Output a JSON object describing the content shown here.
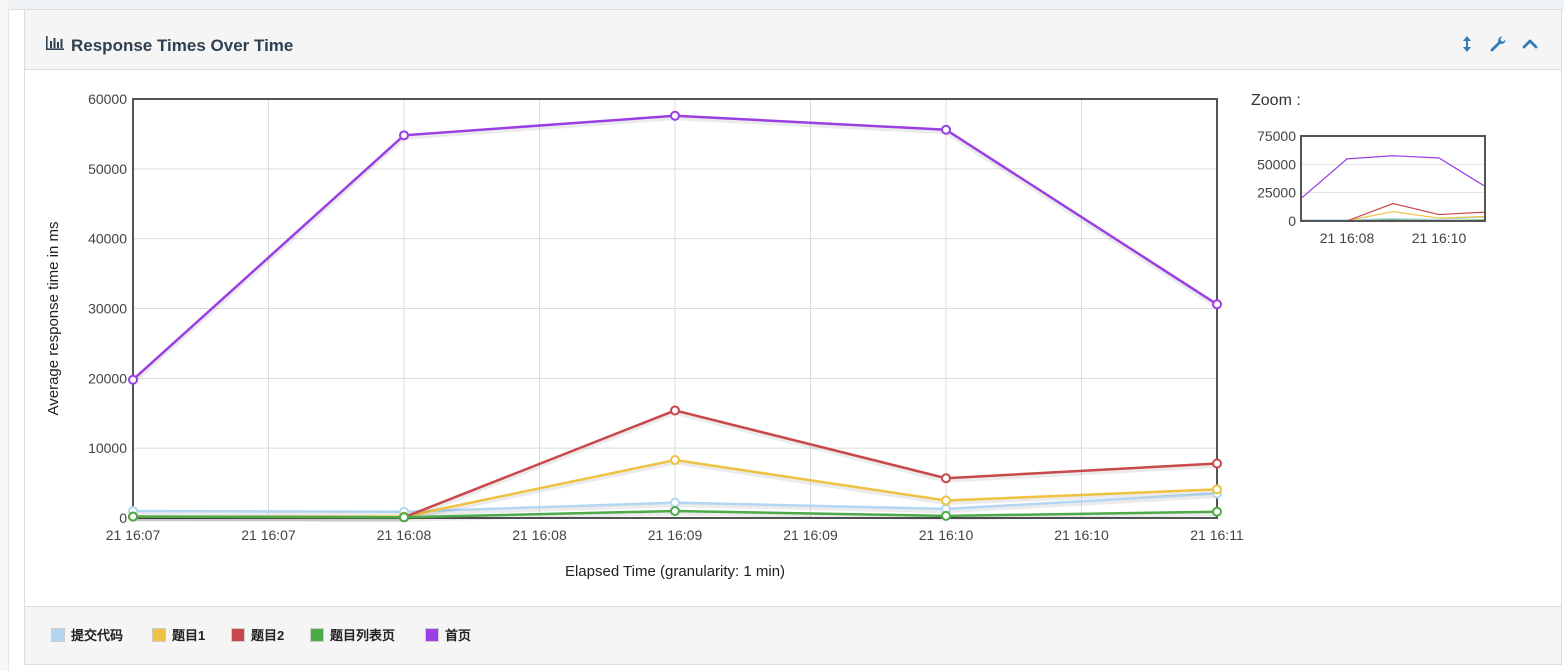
{
  "panel": {
    "title": "Response Times Over Time",
    "icons": {
      "title": "bar-chart-icon",
      "resize": "resize-vertical-icon",
      "settings": "wrench-icon",
      "collapse": "chevron-up-icon"
    }
  },
  "zoom": {
    "label": "Zoom :"
  },
  "colors": {
    "accent_icon": "#337ab7",
    "title": "#2f4050",
    "series": [
      "#b3d6f2",
      "#efc241",
      "#c9484b",
      "#4caa47",
      "#9b3fe5"
    ]
  },
  "chart_data": [
    {
      "type": "line",
      "title": "",
      "xlabel": "Elapsed Time (granularity: 1 min)",
      "ylabel": "Average response time in ms",
      "ylim": [
        0,
        60000
      ],
      "y_ticks": [
        "0",
        "10000",
        "20000",
        "30000",
        "40000",
        "50000",
        "60000"
      ],
      "x_tick_labels": [
        "21 16:07",
        "21 16:07",
        "21 16:08",
        "21 16:08",
        "21 16:09",
        "21 16:09",
        "21 16:10",
        "21 16:10",
        "21 16:11"
      ],
      "x": [
        "21 16:07",
        "21 16:08",
        "21 16:09",
        "21 16:10",
        "21 16:11"
      ],
      "grid": true,
      "legend": "bottom",
      "series": [
        {
          "name": "提交代码",
          "values": [
            1000,
            900,
            2200,
            1300,
            3500
          ]
        },
        {
          "name": "题目1",
          "values": [
            200,
            200,
            8300,
            2500,
            4100
          ]
        },
        {
          "name": "题目2",
          "values": [
            200,
            100,
            15400,
            5700,
            7800
          ]
        },
        {
          "name": "题目列表页",
          "values": [
            200,
            100,
            1000,
            300,
            900
          ]
        },
        {
          "name": "首页",
          "values": [
            19800,
            54800,
            57600,
            55600,
            30600
          ]
        }
      ]
    },
    {
      "type": "line",
      "title": "Zoom :",
      "ylim": [
        0,
        75000
      ],
      "y_ticks": [
        "0",
        "25000",
        "50000",
        "75000"
      ],
      "x_tick_labels": [
        "21 16:08",
        "21 16:10"
      ],
      "x": [
        "21 16:07",
        "21 16:08",
        "21 16:09",
        "21 16:10",
        "21 16:11"
      ],
      "series": [
        {
          "name": "提交代码",
          "values": [
            1000,
            900,
            2200,
            1300,
            3500
          ]
        },
        {
          "name": "题目1",
          "values": [
            200,
            200,
            8300,
            2500,
            4100
          ]
        },
        {
          "name": "题目2",
          "values": [
            200,
            100,
            15400,
            5700,
            7800
          ]
        },
        {
          "name": "题目列表页",
          "values": [
            200,
            100,
            1000,
            300,
            900
          ]
        },
        {
          "name": "首页",
          "values": [
            19800,
            54800,
            57600,
            55600,
            30600
          ]
        }
      ]
    }
  ],
  "legend": [
    {
      "label": "提交代码"
    },
    {
      "label": "题目1"
    },
    {
      "label": "题目2"
    },
    {
      "label": "题目列表页"
    },
    {
      "label": "首页"
    }
  ]
}
